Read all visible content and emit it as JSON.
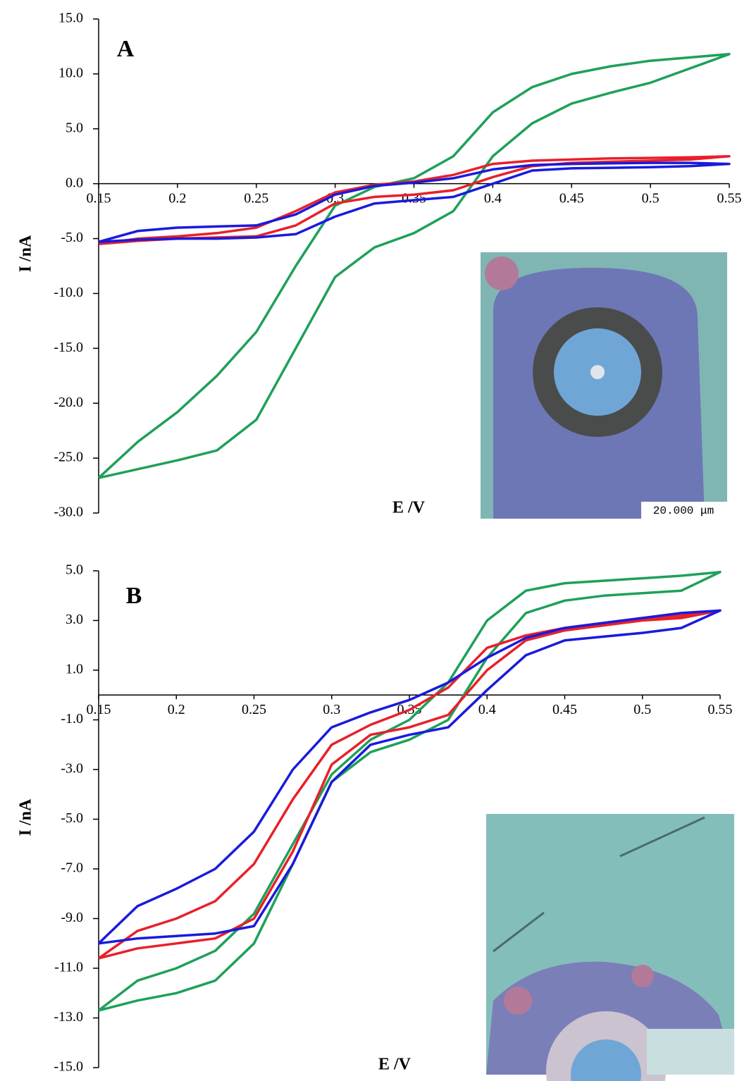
{
  "chart_data": [
    {
      "type": "line",
      "title": "A",
      "x_label": "E /V",
      "y_label": "I /nA",
      "x": [
        0.15,
        0.175,
        0.2,
        0.225,
        0.25,
        0.275,
        0.3,
        0.325,
        0.35,
        0.375,
        0.4,
        0.425,
        0.45,
        0.475,
        0.5,
        0.525,
        0.55,
        0.525,
        0.5,
        0.475,
        0.45,
        0.425,
        0.4,
        0.375,
        0.35,
        0.325,
        0.3,
        0.275,
        0.25,
        0.225,
        0.2,
        0.175,
        0.15
      ],
      "series": [
        {
          "color": "#1fa05a",
          "values": [
            -26.8,
            -23.5,
            -20.8,
            -17.5,
            -13.5,
            -7.5,
            -2.0,
            -0.3,
            0.5,
            2.5,
            6.5,
            8.8,
            10.0,
            10.7,
            11.2,
            11.5,
            11.8,
            10.5,
            9.2,
            8.3,
            7.3,
            5.5,
            2.5,
            -2.5,
            -4.5,
            -5.8,
            -8.5,
            -15,
            -21.5,
            -24.3,
            -25.2,
            -26.0,
            -26.8
          ]
        },
        {
          "color": "#e8202a",
          "values": [
            -5.5,
            -5.0,
            -4.8,
            -4.5,
            -4.0,
            -2.5,
            -0.8,
            -0.1,
            0.2,
            0.8,
            1.8,
            2.1,
            2.2,
            2.3,
            2.35,
            2.4,
            2.5,
            2.2,
            2.1,
            2.0,
            1.9,
            1.6,
            0.6,
            -0.6,
            -1.0,
            -1.2,
            -1.8,
            -3.8,
            -4.8,
            -4.9,
            -5.0,
            -5.2,
            -5.5
          ]
        },
        {
          "color": "#1a1adc",
          "values": [
            -5.3,
            -4.3,
            -4.0,
            -3.9,
            -3.8,
            -2.8,
            -1.0,
            -0.2,
            0.1,
            0.5,
            1.3,
            1.7,
            1.8,
            1.85,
            1.9,
            1.9,
            1.8,
            1.6,
            1.5,
            1.45,
            1.4,
            1.2,
            0.0,
            -1.2,
            -1.5,
            -1.8,
            -3.0,
            -4.6,
            -4.9,
            -5.0,
            -5.0,
            -5.1,
            -5.3
          ]
        }
      ],
      "xlim": [
        0.15,
        0.55
      ],
      "xticks": [
        0.15,
        0.2,
        0.25,
        0.3,
        0.35,
        0.4,
        0.45,
        0.5,
        0.55
      ],
      "ylim": [
        -30,
        15
      ],
      "yticks": [
        {
          "value": -30,
          "label": "-30.0"
        },
        {
          "value": -25,
          "label": "-25.0"
        },
        {
          "value": -20,
          "label": "-20.0"
        },
        {
          "value": -15,
          "label": "-15.0"
        },
        {
          "value": -10,
          "label": "-10.0"
        },
        {
          "value": -5,
          "label": "-5.0"
        },
        {
          "value": 0,
          "label": "0.0"
        },
        {
          "value": 5,
          "label": "5.0"
        },
        {
          "value": 10,
          "label": "10.0"
        },
        {
          "value": 15,
          "label": "15.0"
        }
      ]
    },
    {
      "type": "line",
      "title": "B",
      "x_label": "E /V",
      "y_label": "I /nA",
      "x": [
        0.15,
        0.175,
        0.2,
        0.225,
        0.25,
        0.275,
        0.3,
        0.325,
        0.35,
        0.375,
        0.4,
        0.425,
        0.45,
        0.475,
        0.5,
        0.525,
        0.55,
        0.525,
        0.5,
        0.475,
        0.45,
        0.425,
        0.4,
        0.375,
        0.35,
        0.325,
        0.3,
        0.275,
        0.25,
        0.225,
        0.2,
        0.175,
        0.15
      ],
      "series": [
        {
          "color": "#1fa05a",
          "values": [
            -12.7,
            -11.5,
            -11.0,
            -10.3,
            -8.8,
            -6.0,
            -3.2,
            -1.8,
            -1.0,
            0.5,
            3.0,
            4.2,
            4.5,
            4.6,
            4.7,
            4.8,
            4.95,
            4.2,
            4.1,
            4.0,
            3.8,
            3.3,
            1.5,
            -1.0,
            -1.8,
            -2.3,
            -3.5,
            -6.8,
            -10.0,
            -11.5,
            -12.0,
            -12.3,
            -12.7
          ]
        },
        {
          "color": "#e8202a",
          "values": [
            -10.6,
            -9.5,
            -9.0,
            -8.3,
            -6.8,
            -4.2,
            -2.0,
            -1.2,
            -0.6,
            0.3,
            1.9,
            2.4,
            2.7,
            2.9,
            3.1,
            3.2,
            3.4,
            3.1,
            3.0,
            2.8,
            2.6,
            2.2,
            1.0,
            -0.8,
            -1.3,
            -1.6,
            -2.8,
            -6.3,
            -9.0,
            -9.8,
            -10.0,
            -10.2,
            -10.6
          ]
        },
        {
          "color": "#1a1adc",
          "values": [
            -10.0,
            -8.5,
            -7.8,
            -7.0,
            -5.5,
            -3.0,
            -1.3,
            -0.7,
            -0.2,
            0.5,
            1.5,
            2.3,
            2.7,
            2.9,
            3.1,
            3.3,
            3.4,
            2.7,
            2.5,
            2.35,
            2.2,
            1.6,
            0.2,
            -1.3,
            -1.6,
            -2.0,
            -3.5,
            -6.8,
            -9.3,
            -9.6,
            -9.7,
            -9.8,
            -10.0
          ]
        }
      ],
      "xlim": [
        0.15,
        0.55
      ],
      "xticks": [
        0.15,
        0.2,
        0.25,
        0.3,
        0.35,
        0.4,
        0.45,
        0.5,
        0.55
      ],
      "ylim": [
        -15,
        5
      ],
      "yticks": [
        {
          "value": -15,
          "label": "-15.0"
        },
        {
          "value": -13,
          "label": "-13.0"
        },
        {
          "value": -11,
          "label": "-11.0"
        },
        {
          "value": -9,
          "label": "-9.0"
        },
        {
          "value": -7,
          "label": "-7.0"
        },
        {
          "value": -5,
          "label": "-5.0"
        },
        {
          "value": -3,
          "label": "-3.0"
        },
        {
          "value": -1,
          "label": "-1.0"
        },
        {
          "value": 1,
          "label": "1.0"
        },
        {
          "value": 3,
          "label": "3.0"
        },
        {
          "value": 5,
          "label": "5.0"
        }
      ]
    }
  ]
}
